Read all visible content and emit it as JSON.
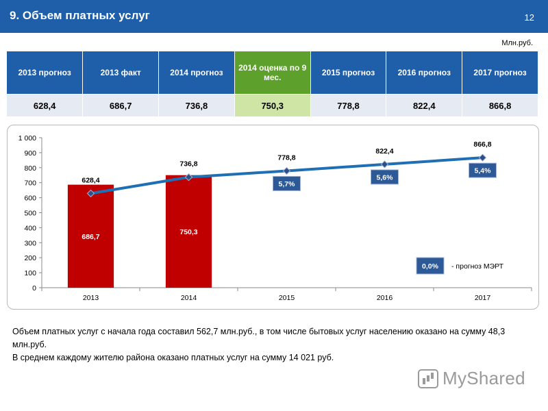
{
  "header": {
    "title": "9. Объем платных услуг",
    "page_number": "12"
  },
  "unit": "Млн.руб.",
  "table": {
    "headers": [
      "2013 прогноз",
      "2013 факт",
      "2014 прогноз",
      "2014 оценка по 9 мес.",
      "2015 прогноз",
      "2016 прогноз",
      "2017 прогноз"
    ],
    "values": [
      "628,4",
      "686,7",
      "736,8",
      "750,3",
      "778,8",
      "822,4",
      "866,8"
    ]
  },
  "chart_data": {
    "type": "bar+line",
    "categories": [
      "2013",
      "2014",
      "2015",
      "2016",
      "2017"
    ],
    "ylim": [
      0,
      1000
    ],
    "yticks": [
      0,
      100,
      200,
      300,
      400,
      500,
      600,
      700,
      800,
      900,
      1000
    ],
    "ytick_labels": [
      "0",
      "100",
      "200",
      "300",
      "400",
      "500",
      "600",
      "700",
      "800",
      "900",
      "1 000"
    ],
    "bar_series": {
      "name": "Факт / оценка",
      "values": [
        686.7,
        750.3,
        null,
        null,
        null
      ],
      "labels": [
        "686,7",
        "750,3",
        "",
        "",
        ""
      ],
      "color": "#c00000"
    },
    "line_series": {
      "name": "Прогноз",
      "values": [
        628.4,
        736.8,
        778.8,
        822.4,
        866.8
      ],
      "labels": [
        "628,4",
        "736,8",
        "778,8",
        "822,4",
        "866,8"
      ],
      "color": "#1f6fb5"
    },
    "growth_badges": [
      {
        "category": "2015",
        "text": "5,7%"
      },
      {
        "category": "2016",
        "text": "5,6%"
      },
      {
        "category": "2017",
        "text": "5,4%"
      }
    ],
    "legend": {
      "badge": "0,0%",
      "text": "- прогноз МЭРТ"
    }
  },
  "notes": [
    "Объем платных услуг с начала года составил 562,7 млн.руб., в том числе бытовых услуг населению оказано на сумму 48,3 млн.руб.",
    "В среднем каждому жителю района оказано платных услуг на сумму 14 021 руб."
  ],
  "watermark": "MyShared"
}
